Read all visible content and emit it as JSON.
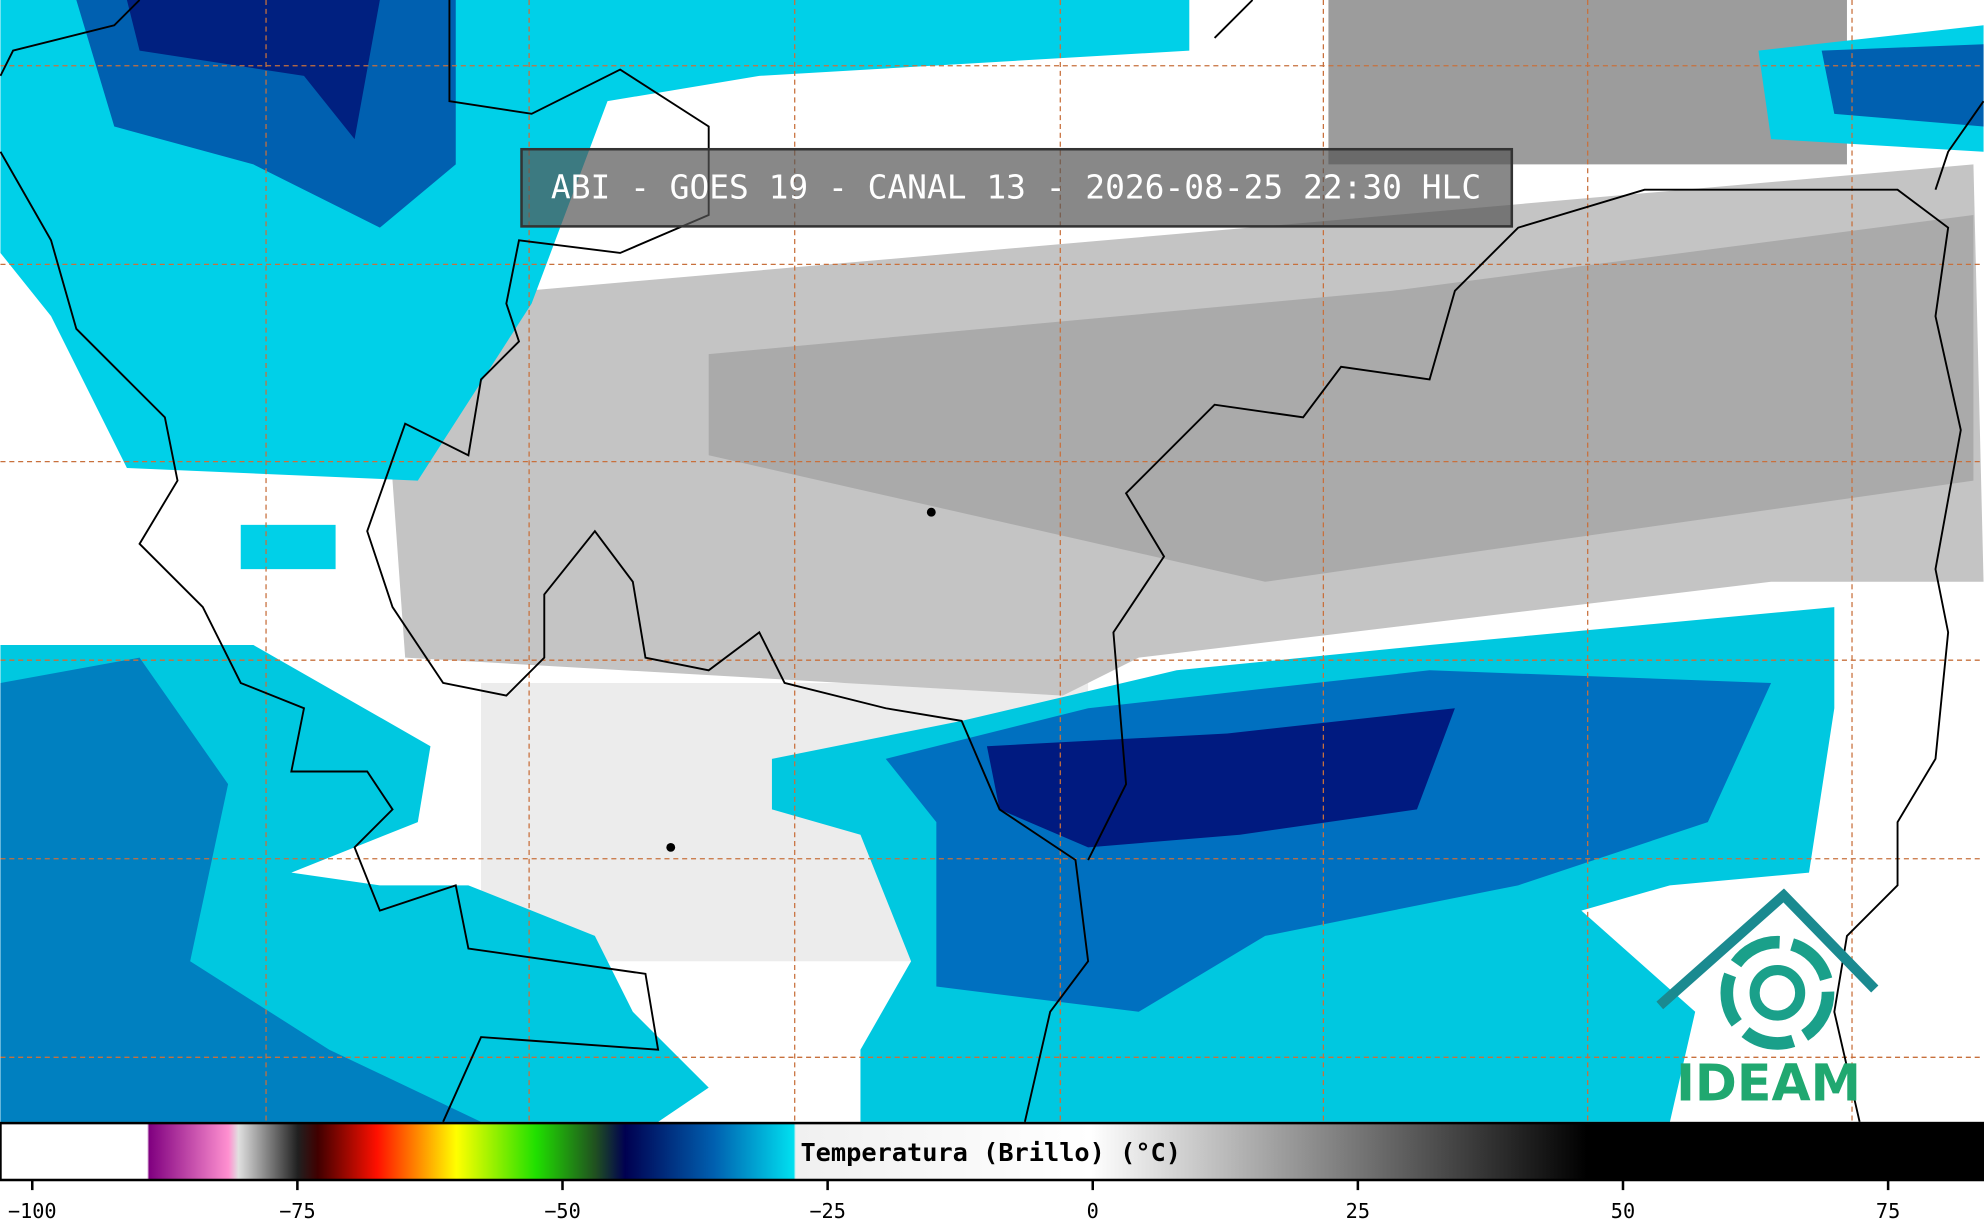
{
  "header": {
    "title": "ABI - GOES 19 - CANAL 13 - 2026-08-25 22:30 HLC"
  },
  "colorbar": {
    "label": "Temperatura (Brillo) (°C)",
    "xlim": [
      -103,
      84
    ],
    "xticks": [
      {
        "value": -100,
        "label": "−100"
      },
      {
        "value": -75,
        "label": "−75"
      },
      {
        "value": -50,
        "label": "−50"
      },
      {
        "value": -25,
        "label": "−25"
      },
      0,
      25,
      50,
      75
    ]
  },
  "logo": {
    "text": "IDEAM"
  }
}
